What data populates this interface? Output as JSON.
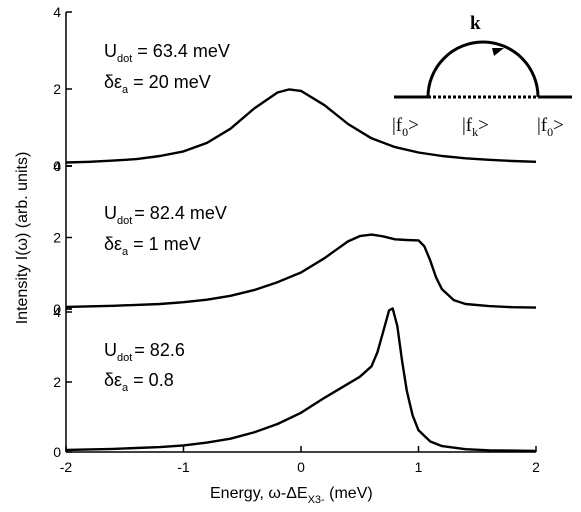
{
  "chart_data": [
    {
      "type": "line",
      "panel": "top",
      "x": [
        -2.0,
        -1.8,
        -1.6,
        -1.4,
        -1.2,
        -1.0,
        -0.8,
        -0.6,
        -0.4,
        -0.2,
        -0.1,
        0.0,
        0.2,
        0.4,
        0.6,
        0.8,
        1.0,
        1.2,
        1.4,
        1.6,
        1.8,
        2.0
      ],
      "y": [
        0.09,
        0.11,
        0.14,
        0.18,
        0.26,
        0.38,
        0.6,
        0.97,
        1.49,
        1.91,
        1.99,
        1.95,
        1.58,
        1.09,
        0.72,
        0.49,
        0.35,
        0.26,
        0.2,
        0.16,
        0.13,
        0.11
      ],
      "ylim": [
        0,
        4
      ],
      "yticks": [
        "0",
        "2",
        "4"
      ],
      "annotation": {
        "U": "U",
        "U_sub": "dot",
        "U_val": " = 63.4 meV",
        "d": "δε",
        "d_sub": "a",
        "d_val": " = 20 meV"
      }
    },
    {
      "type": "line",
      "panel": "middle",
      "x": [
        -2.0,
        -1.6,
        -1.2,
        -1.0,
        -0.8,
        -0.6,
        -0.4,
        -0.2,
        0.0,
        0.2,
        0.3,
        0.4,
        0.5,
        0.6,
        0.7,
        0.8,
        0.9,
        1.0,
        1.05,
        1.1,
        1.15,
        1.2,
        1.3,
        1.4,
        1.6,
        1.8,
        2.0
      ],
      "y": [
        0.06,
        0.09,
        0.14,
        0.19,
        0.26,
        0.37,
        0.53,
        0.75,
        1.02,
        1.42,
        1.66,
        1.89,
        2.04,
        2.08,
        2.03,
        1.95,
        1.93,
        1.92,
        1.75,
        1.35,
        0.88,
        0.55,
        0.25,
        0.14,
        0.08,
        0.05,
        0.04
      ],
      "ylim": [
        0,
        4
      ],
      "yticks": [
        "0",
        "2",
        "4"
      ],
      "annotation": {
        "U": "U",
        "U_sub": "dot",
        "U_val": "= 82.4 meV",
        "d": "δε",
        "d_sub": "a",
        "d_val": " = 1 meV"
      }
    },
    {
      "type": "line",
      "panel": "bottom",
      "x": [
        -2.0,
        -1.6,
        -1.2,
        -1.0,
        -0.8,
        -0.6,
        -0.4,
        -0.2,
        0.0,
        0.2,
        0.4,
        0.5,
        0.6,
        0.65,
        0.7,
        0.75,
        0.78,
        0.82,
        0.86,
        0.9,
        0.95,
        1.0,
        1.1,
        1.2,
        1.4,
        1.6,
        1.8,
        2.0
      ],
      "y": [
        0.06,
        0.09,
        0.14,
        0.19,
        0.27,
        0.38,
        0.56,
        0.8,
        1.12,
        1.55,
        1.95,
        2.15,
        2.45,
        2.85,
        3.45,
        4.05,
        4.1,
        3.6,
        2.6,
        1.75,
        1.05,
        0.62,
        0.3,
        0.17,
        0.08,
        0.05,
        0.04,
        0.03
      ],
      "ylim": [
        0,
        4
      ],
      "yticks": [
        "0",
        "2",
        "4"
      ],
      "annotation": {
        "U": "U",
        "U_sub": "dot",
        "U_val": "= 82.6",
        "d": "δε",
        "d_sub": "a",
        "d_val": " = 0.8"
      }
    }
  ],
  "shared_axis": {
    "xlim": [
      -2,
      2
    ],
    "xticks": [
      "-2",
      "-1",
      "0",
      "1",
      "2"
    ],
    "xlabel_main": "Energy, ω-ΔE",
    "xlabel_sub": "X3-",
    "xlabel_unit": " (meV)",
    "ylabel": "Intensity I(ω) (arb. units)"
  },
  "diagram": {
    "k_label": "k",
    "left": "|f",
    "left_sub": "0",
    "mid": "|f",
    "mid_sub": "k",
    "right": "|f",
    "right_sub": "0",
    "close": ">"
  }
}
